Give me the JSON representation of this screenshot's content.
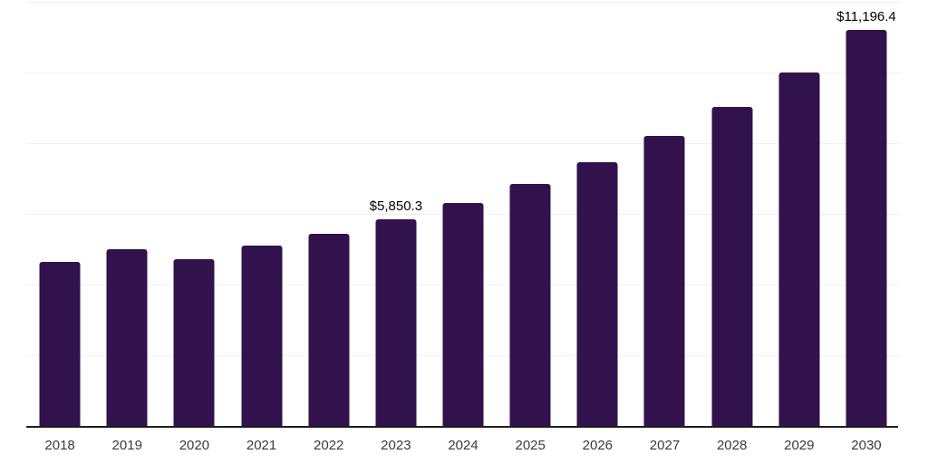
{
  "chart_data": {
    "type": "bar",
    "title": "",
    "xlabel": "",
    "ylabel": "",
    "categories": [
      "2018",
      "2019",
      "2020",
      "2021",
      "2022",
      "2023",
      "2024",
      "2025",
      "2026",
      "2027",
      "2028",
      "2029",
      "2030"
    ],
    "values": [
      4640,
      5000,
      4715,
      5105,
      5440,
      5850.3,
      6320,
      6850,
      7455,
      8200,
      9035,
      10010,
      11196.4
    ],
    "value_labels": [
      "",
      "",
      "",
      "",
      "",
      "$5,850.3",
      "",
      "",
      "",
      "",
      "",
      "",
      "$11,196.4"
    ],
    "ylim": [
      0,
      12000
    ],
    "gridline_step": 2000,
    "grid": "horizontal-only",
    "legend": "none",
    "colors": {
      "bar": "#31124c",
      "gridline": "#f0f0f0",
      "axis_line": "#1f1f1f",
      "data_label": "#000000",
      "tick_label": "#3a3a3a",
      "background": "#ffffff"
    }
  }
}
